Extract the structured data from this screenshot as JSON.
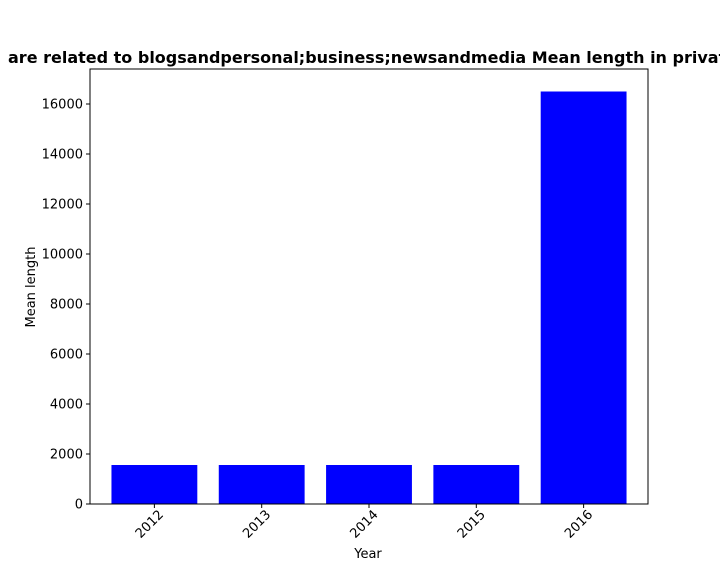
{
  "chart_data": {
    "type": "bar",
    "title": "are related to blogsandpersonal;business;newsandmedia Mean length in private",
    "xlabel": "Year",
    "ylabel": "Mean length",
    "categories": [
      "2012",
      "2013",
      "2014",
      "2015",
      "2016"
    ],
    "values": [
      1560,
      1560,
      1560,
      1560,
      16500
    ],
    "ylim": [
      0,
      17400
    ],
    "yticks": [
      "0",
      "2000",
      "4000",
      "6000",
      "8000",
      "10000",
      "12000",
      "14000",
      "16000"
    ],
    "bar_color": "#0000ff",
    "grid": false,
    "legend": "none"
  }
}
